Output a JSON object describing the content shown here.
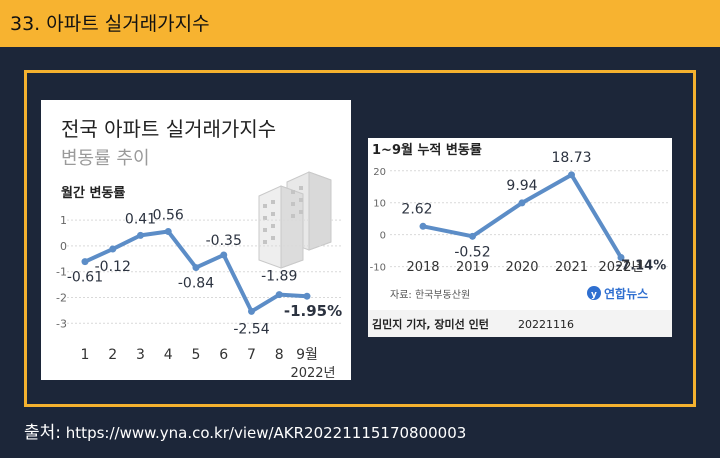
{
  "header": {
    "title": "33. 아파트 실거래가지수"
  },
  "source": {
    "label": "출처:",
    "url": "https://www.yna.co.kr/view/AKR20221115170800003"
  },
  "chart_data": [
    {
      "type": "line",
      "title": "전국 아파트 실거래가지수",
      "subtitle": "변동률 추이",
      "series_label": "월간 변동률",
      "x": [
        "1",
        "2",
        "3",
        "4",
        "5",
        "6",
        "7",
        "8",
        "9월"
      ],
      "values": [
        -0.61,
        -0.12,
        0.41,
        0.56,
        -0.84,
        -0.35,
        -2.54,
        -1.89,
        -1.95
      ],
      "value_labels": [
        "-0.61",
        "-0.12",
        "0.41",
        "0.56",
        "-0.84",
        "-0.35",
        "-2.54",
        "-1.89",
        "-1.95%"
      ],
      "yticks": [
        "1",
        "0",
        "-1",
        "-2",
        "-3"
      ],
      "ylim": [
        -3.3,
        1.2
      ],
      "year_label": "2022년",
      "color": "#5c8dc7"
    },
    {
      "type": "line",
      "title": "1~9월 누적 변동률",
      "x": [
        "2018",
        "2019",
        "2020",
        "2021",
        "2022년"
      ],
      "values": [
        2.62,
        -0.52,
        9.94,
        18.73,
        -7.14
      ],
      "value_labels": [
        "2.62",
        "-0.52",
        "9.94",
        "18.73",
        "-7.14%"
      ],
      "yticks": [
        "20",
        "10",
        "0",
        "-10"
      ],
      "ylim": [
        -12,
        24
      ],
      "note": "자료: 한국부동산원",
      "logo": "연합뉴스",
      "credit": "김민지 기자, 장미선 인턴",
      "credit_date": "20221116",
      "color": "#5c8dc7"
    }
  ]
}
